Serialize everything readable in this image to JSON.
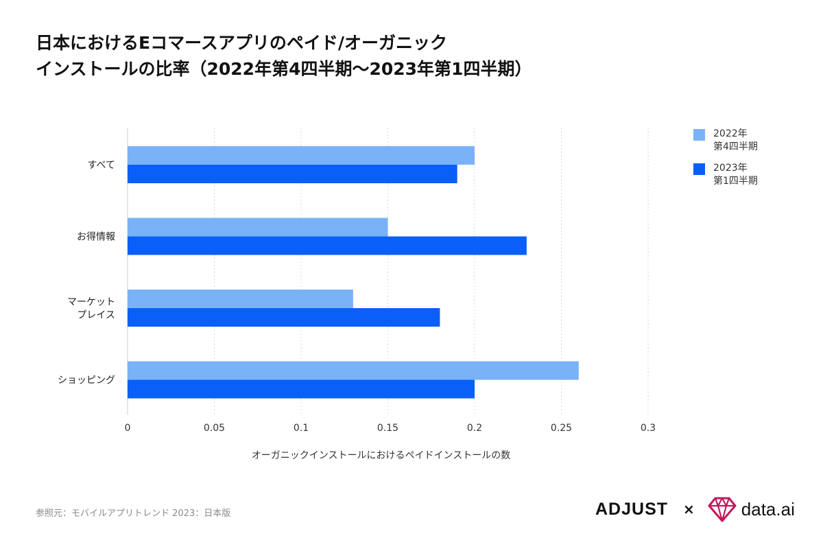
{
  "title": {
    "line1": "日本におけるEコマースアプリのペイド/オーガニック",
    "line2": "インストールの比率（2022年第4四半期〜2023年第1四半期）"
  },
  "chart_data": {
    "type": "bar",
    "orientation": "horizontal",
    "categories": [
      [
        "すべて"
      ],
      [
        "お得情報"
      ],
      [
        "マーケット",
        "プレイス"
      ],
      [
        "ショッピング"
      ]
    ],
    "series": [
      {
        "name": [
          "2022年",
          "第4四半期"
        ],
        "color": "#7AB2F7",
        "values": [
          0.2,
          0.15,
          0.13,
          0.26
        ]
      },
      {
        "name": [
          "2023年",
          "第1四半期"
        ],
        "color": "#0A5FF8",
        "values": [
          0.19,
          0.23,
          0.18,
          0.2
        ]
      }
    ],
    "xlabel": "オーガニックインストールにおけるペイドインストールの数",
    "xlim": [
      0,
      0.3
    ],
    "xticks": [
      "0",
      "0.05",
      "0.1",
      "0.15",
      "0.2",
      "0.25",
      "0.3"
    ],
    "grid": true,
    "legend": "right"
  },
  "footer": {
    "source": "参照元：モバイルアプリトレンド 2023：日本版",
    "adjust_logo": "ADJUST",
    "separator": "×",
    "dataai_logo": "data.ai"
  },
  "icons": {
    "dataai": "diamond-logo-icon"
  },
  "colors": {
    "dataai_brand": "#C2185B"
  }
}
